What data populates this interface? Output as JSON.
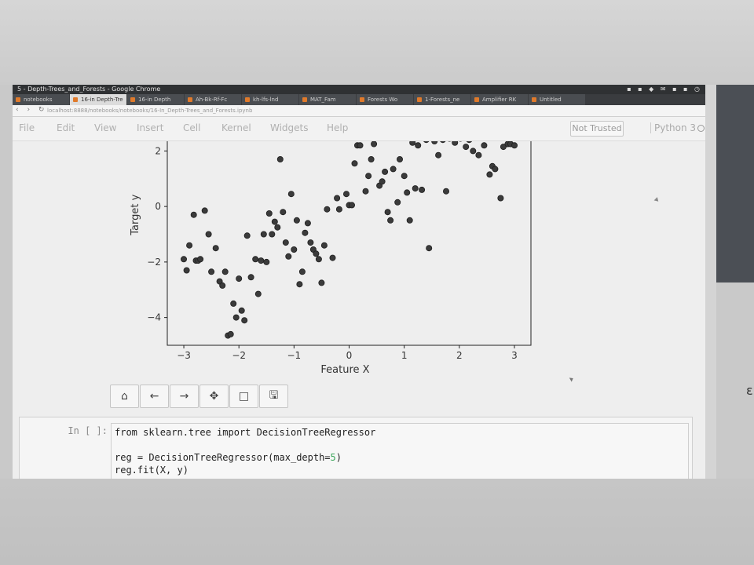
{
  "browser": {
    "window_title": "5 - Depth-Trees_and_Forests - Google Chrome",
    "tabs": [
      {
        "label": "notebooks",
        "active": false
      },
      {
        "label": "16-in Depth-Tre",
        "active": true
      },
      {
        "label": "16-in Depth",
        "active": false
      },
      {
        "label": "Ah-Bk-Rf-Fc",
        "active": false
      },
      {
        "label": "kh-lfs-lnd",
        "active": false
      },
      {
        "label": "MAT_Fam",
        "active": false
      },
      {
        "label": "Forests Wo",
        "active": false
      },
      {
        "label": "1-Forests_ne",
        "active": false
      },
      {
        "label": "Amplifier RK",
        "active": false
      },
      {
        "label": "Untitled",
        "active": false
      }
    ],
    "url": "localhost:8888/notebooks/notebooks/16-In_Depth-Trees_and_Forests.ipynb"
  },
  "notebook": {
    "menu": [
      "File",
      "Edit",
      "View",
      "Insert",
      "Cell",
      "Kernel",
      "Widgets",
      "Help"
    ],
    "trust_label": "Not Trusted",
    "kernel_label": "Python 3"
  },
  "plot_toolbar": {
    "buttons": [
      {
        "name": "home-icon",
        "glyph": "⌂"
      },
      {
        "name": "back-arrow-icon",
        "glyph": "←"
      },
      {
        "name": "forward-arrow-icon",
        "glyph": "→"
      },
      {
        "name": "pan-move-icon",
        "glyph": "✥"
      },
      {
        "name": "zoom-rect-icon",
        "glyph": "□"
      },
      {
        "name": "save-icon",
        "glyph": "🖫"
      }
    ]
  },
  "cell": {
    "prompt": "In [ ]:",
    "lines": [
      {
        "pre": "from sklearn.tree import DecisionTreeRegressor",
        "num": "",
        "post": ""
      },
      {
        "pre": "",
        "num": "",
        "post": ""
      },
      {
        "pre": "reg = DecisionTreeRegressor(max_depth=",
        "num": "5",
        "post": ")"
      },
      {
        "pre": "reg.fit(X, y)",
        "num": "",
        "post": ""
      }
    ]
  },
  "chart_data": {
    "type": "scatter",
    "xlabel": "Feature X",
    "ylabel": "Target y",
    "xlim": [
      -3.3,
      3.3
    ],
    "ylim": [
      -5.0,
      2.35
    ],
    "xticks": [
      -3,
      -2,
      -1,
      0,
      1,
      2,
      3
    ],
    "yticks": [
      2,
      0,
      -2,
      -4
    ],
    "grid": false,
    "marker_color": "#3b3b3b",
    "points": [
      [
        -3.0,
        -1.9
      ],
      [
        -2.95,
        -2.3
      ],
      [
        -2.9,
        -1.4
      ],
      [
        -2.82,
        -0.3
      ],
      [
        -2.78,
        -1.95
      ],
      [
        -2.74,
        -1.95
      ],
      [
        -2.7,
        -1.9
      ],
      [
        -2.62,
        -0.15
      ],
      [
        -2.55,
        -1.0
      ],
      [
        -2.5,
        -2.35
      ],
      [
        -2.42,
        -1.5
      ],
      [
        -2.35,
        -2.7
      ],
      [
        -2.3,
        -2.85
      ],
      [
        -2.25,
        -2.35
      ],
      [
        -2.2,
        -4.65
      ],
      [
        -2.15,
        -4.6
      ],
      [
        -2.1,
        -3.5
      ],
      [
        -2.05,
        -4.0
      ],
      [
        -2.0,
        -2.6
      ],
      [
        -1.95,
        -3.75
      ],
      [
        -1.9,
        -4.1
      ],
      [
        -1.85,
        -1.05
      ],
      [
        -1.78,
        -2.55
      ],
      [
        -1.7,
        -1.9
      ],
      [
        -1.65,
        -3.15
      ],
      [
        -1.6,
        -1.95
      ],
      [
        -1.55,
        -1.0
      ],
      [
        -1.5,
        -2.0
      ],
      [
        -1.45,
        -0.25
      ],
      [
        -1.4,
        -1.0
      ],
      [
        -1.35,
        -0.55
      ],
      [
        -1.3,
        -0.75
      ],
      [
        -1.25,
        1.7
      ],
      [
        -1.2,
        -0.2
      ],
      [
        -1.15,
        -1.3
      ],
      [
        -1.1,
        -1.8
      ],
      [
        -1.05,
        0.45
      ],
      [
        -1.0,
        -1.55
      ],
      [
        -0.95,
        -0.5
      ],
      [
        -0.9,
        -2.8
      ],
      [
        -0.85,
        -2.35
      ],
      [
        -0.8,
        -0.95
      ],
      [
        -0.75,
        -0.6
      ],
      [
        -0.7,
        -1.3
      ],
      [
        -0.65,
        -1.55
      ],
      [
        -0.6,
        -1.7
      ],
      [
        -0.55,
        -1.9
      ],
      [
        -0.5,
        -2.75
      ],
      [
        -0.45,
        -1.4
      ],
      [
        -0.4,
        -0.1
      ],
      [
        -0.3,
        -1.85
      ],
      [
        -0.22,
        0.3
      ],
      [
        -0.18,
        -0.1
      ],
      [
        -0.05,
        0.45
      ],
      [
        0.0,
        0.05
      ],
      [
        0.05,
        0.05
      ],
      [
        0.1,
        1.55
      ],
      [
        0.15,
        2.2
      ],
      [
        0.2,
        2.2
      ],
      [
        0.3,
        0.55
      ],
      [
        0.35,
        1.1
      ],
      [
        0.4,
        1.7
      ],
      [
        0.45,
        2.25
      ],
      [
        0.55,
        0.75
      ],
      [
        0.6,
        0.9
      ],
      [
        0.65,
        1.25
      ],
      [
        0.7,
        -0.2
      ],
      [
        0.75,
        -0.5
      ],
      [
        0.8,
        1.35
      ],
      [
        0.88,
        0.15
      ],
      [
        0.92,
        1.7
      ],
      [
        1.0,
        1.1
      ],
      [
        1.05,
        0.5
      ],
      [
        1.1,
        -0.5
      ],
      [
        1.15,
        2.3
      ],
      [
        1.2,
        0.65
      ],
      [
        1.25,
        2.2
      ],
      [
        1.32,
        0.6
      ],
      [
        1.4,
        2.4
      ],
      [
        1.45,
        -1.5
      ],
      [
        1.55,
        2.35
      ],
      [
        1.62,
        1.85
      ],
      [
        1.7,
        2.4
      ],
      [
        1.76,
        0.55
      ],
      [
        1.82,
        2.45
      ],
      [
        1.92,
        2.3
      ],
      [
        2.02,
        2.45
      ],
      [
        2.12,
        2.15
      ],
      [
        2.18,
        2.4
      ],
      [
        2.25,
        2.0
      ],
      [
        2.35,
        1.85
      ],
      [
        2.45,
        2.2
      ],
      [
        2.55,
        1.15
      ],
      [
        2.6,
        1.45
      ],
      [
        2.65,
        1.35
      ],
      [
        2.75,
        0.3
      ],
      [
        2.8,
        2.15
      ],
      [
        2.88,
        2.25
      ],
      [
        2.93,
        2.25
      ],
      [
        3.0,
        2.2
      ]
    ]
  }
}
